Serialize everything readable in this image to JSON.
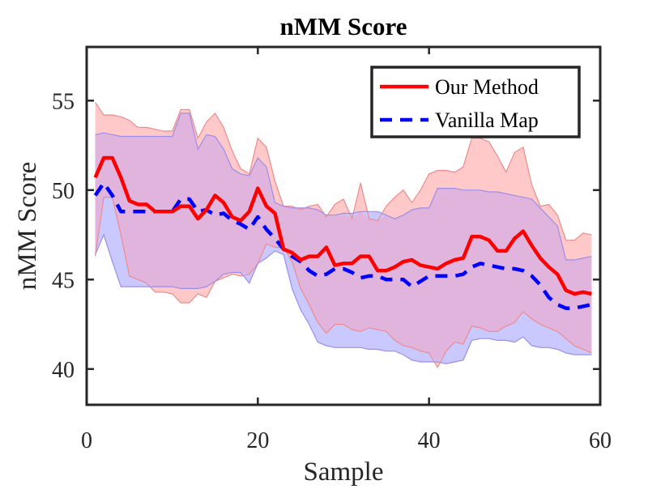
{
  "chart_data": {
    "type": "line",
    "title": "nMM Score",
    "xlabel": "Sample",
    "ylabel": "nMM Score",
    "xlim": [
      0,
      60
    ],
    "ylim": [
      38,
      58
    ],
    "xticks": [
      0,
      20,
      40,
      60
    ],
    "yticks": [
      40,
      45,
      50,
      55
    ],
    "grid": false,
    "legend_position": "top-right",
    "colors": {
      "ours": "#ff0000",
      "ours_band": "#ffc9c9",
      "ours_band_edge": "#f08a8a",
      "vanilla": "#0000ff",
      "vanilla_band": "#c9c9ff",
      "vanilla_band_edge": "#9a8ee8",
      "overlap_band": "#e0b4dc"
    },
    "x": [
      1,
      2,
      3,
      4,
      5,
      6,
      7,
      8,
      9,
      10,
      11,
      12,
      13,
      14,
      15,
      16,
      17,
      18,
      19,
      20,
      21,
      22,
      23,
      24,
      25,
      26,
      27,
      28,
      29,
      30,
      31,
      32,
      33,
      34,
      35,
      36,
      37,
      38,
      39,
      40,
      41,
      42,
      43,
      44,
      45,
      46,
      47,
      48,
      49,
      50,
      51,
      52,
      53,
      54,
      55,
      56,
      57,
      58,
      59
    ],
    "series": [
      {
        "name": "Our Method",
        "style": "solid",
        "values": [
          50.7,
          51.8,
          51.8,
          50.7,
          49.4,
          49.2,
          49.2,
          48.8,
          48.8,
          48.8,
          49.1,
          49.1,
          48.4,
          48.9,
          49.7,
          49.3,
          48.5,
          48.3,
          48.8,
          50.1,
          49.1,
          48.7,
          46.7,
          46.5,
          46.1,
          46.3,
          46.3,
          46.8,
          45.8,
          45.9,
          45.9,
          46.3,
          46.3,
          45.5,
          45.5,
          45.7,
          46.0,
          46.1,
          45.8,
          45.7,
          45.6,
          45.9,
          46.1,
          46.2,
          47.4,
          47.4,
          47.2,
          46.6,
          46.6,
          47.3,
          47.7,
          46.9,
          46.2,
          45.7,
          45.3,
          44.4,
          44.2,
          44.3,
          44.2
        ],
        "upper": [
          54.9,
          54.2,
          54.2,
          54.1,
          53.9,
          53.5,
          53.5,
          53.4,
          53.3,
          53.3,
          54.5,
          54.5,
          52.9,
          53.8,
          54.3,
          53.5,
          52.2,
          51.2,
          50.9,
          52.9,
          52.4,
          50.5,
          49.1,
          49.1,
          48.9,
          49.1,
          49.2,
          48.5,
          49.2,
          49.5,
          48.4,
          50.4,
          48.4,
          48.3,
          49.1,
          49.6,
          50.0,
          49.3,
          50.0,
          50.9,
          51.1,
          51.1,
          51.0,
          51.3,
          52.9,
          52.9,
          52.7,
          51.9,
          51.0,
          52.1,
          52.4,
          50.3,
          49.1,
          49.2,
          48.6,
          47.2,
          47.2,
          47.6,
          47.5
        ],
        "lower": [
          46.3,
          49.6,
          49.6,
          47.5,
          45.2,
          45.0,
          44.8,
          44.3,
          44.3,
          44.2,
          43.7,
          43.7,
          44.2,
          44.0,
          44.9,
          45.1,
          45.3,
          45.2,
          45.3,
          45.9,
          47.0,
          46.8,
          46.8,
          46.0,
          44.5,
          43.6,
          42.6,
          42.0,
          42.5,
          42.5,
          42.2,
          42.1,
          42.3,
          42.2,
          42.1,
          41.6,
          41.3,
          41.2,
          41.0,
          40.9,
          40.1,
          41.0,
          41.5,
          41.4,
          42.4,
          42.3,
          42.1,
          42.1,
          42.4,
          42.6,
          43.2,
          42.8,
          42.5,
          42.3,
          42.1,
          41.7,
          41.3,
          41.1,
          40.9
        ]
      },
      {
        "name": "Vanilla Map",
        "style": "dashed",
        "values": [
          49.7,
          50.4,
          49.7,
          48.8,
          48.8,
          48.8,
          48.8,
          48.8,
          48.8,
          48.8,
          49.5,
          49.5,
          48.8,
          48.9,
          48.6,
          48.7,
          48.3,
          48.1,
          47.8,
          48.5,
          47.8,
          47.3,
          46.7,
          46.3,
          46.0,
          45.5,
          45.2,
          45.3,
          45.6,
          45.6,
          45.4,
          45.1,
          45.2,
          45.2,
          45.0,
          45.0,
          45.0,
          44.6,
          44.9,
          45.2,
          45.2,
          45.2,
          45.2,
          45.3,
          45.7,
          45.9,
          45.8,
          45.7,
          45.6,
          45.6,
          45.5,
          45.2,
          44.7,
          44.0,
          43.6,
          43.4,
          43.4,
          43.5,
          43.6
        ],
        "upper": [
          53.1,
          53.2,
          53.1,
          53.0,
          53.0,
          53.0,
          53.0,
          53.0,
          53.0,
          53.0,
          54.3,
          54.3,
          52.3,
          53.1,
          53.0,
          52.3,
          51.2,
          50.9,
          50.8,
          51.8,
          51.3,
          49.3,
          49.1,
          49.0,
          49.0,
          49.0,
          48.9,
          48.6,
          48.6,
          48.7,
          48.7,
          48.8,
          48.8,
          48.8,
          48.6,
          48.4,
          48.6,
          48.9,
          49.0,
          49.0,
          50.1,
          50.1,
          50.1,
          50.0,
          50.0,
          50.0,
          49.9,
          49.9,
          49.8,
          49.7,
          49.6,
          49.5,
          49.0,
          48.5,
          48.0,
          46.1,
          46.1,
          46.2,
          46.3
        ],
        "lower": [
          46.4,
          47.5,
          46.0,
          44.6,
          44.6,
          44.6,
          44.6,
          44.6,
          44.6,
          44.6,
          44.5,
          44.5,
          44.5,
          44.6,
          44.9,
          45.3,
          45.4,
          45.4,
          44.8,
          45.9,
          46.2,
          46.6,
          46.4,
          44.5,
          43.3,
          42.5,
          41.5,
          41.3,
          41.2,
          41.2,
          41.2,
          41.2,
          41.1,
          41.1,
          41.0,
          41.0,
          40.8,
          40.5,
          40.4,
          40.4,
          40.4,
          40.3,
          40.4,
          40.5,
          41.6,
          41.7,
          41.7,
          41.6,
          41.6,
          41.5,
          41.8,
          41.3,
          41.2,
          41.2,
          41.1,
          40.9,
          40.8,
          40.8,
          40.8
        ]
      }
    ]
  }
}
